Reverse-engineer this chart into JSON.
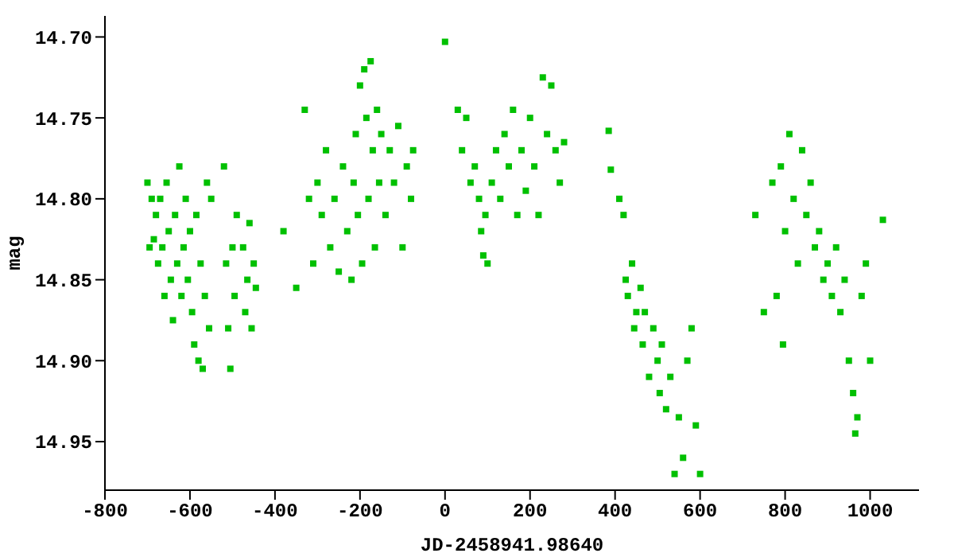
{
  "chart_data": {
    "type": "scatter",
    "xlabel": "JD-2458941.98640",
    "ylabel": "mag",
    "x": [
      -700,
      -695,
      -690,
      -685,
      -680,
      -675,
      -670,
      -665,
      -660,
      -655,
      -650,
      -645,
      -640,
      -635,
      -630,
      -625,
      -620,
      -615,
      -610,
      -605,
      -600,
      -595,
      -590,
      -585,
      -580,
      -575,
      -570,
      -565,
      -560,
      -555,
      -550,
      -520,
      -515,
      -510,
      -505,
      -500,
      -495,
      -490,
      -475,
      -470,
      -465,
      -460,
      -455,
      -450,
      -445,
      -380,
      -350,
      -330,
      -320,
      -310,
      -300,
      -290,
      -280,
      -270,
      -260,
      -250,
      -240,
      -230,
      -220,
      -215,
      -210,
      -205,
      -200,
      -195,
      -190,
      -185,
      -180,
      -175,
      -170,
      -165,
      -160,
      -155,
      -150,
      -140,
      -130,
      -120,
      -110,
      -100,
      -90,
      -80,
      -75,
      0,
      30,
      40,
      50,
      60,
      70,
      80,
      85,
      90,
      95,
      100,
      110,
      120,
      130,
      140,
      150,
      160,
      170,
      180,
      190,
      200,
      210,
      220,
      230,
      240,
      250,
      260,
      270,
      280,
      385,
      390,
      410,
      420,
      425,
      430,
      440,
      445,
      450,
      460,
      465,
      470,
      480,
      490,
      500,
      505,
      510,
      520,
      530,
      540,
      550,
      560,
      570,
      580,
      590,
      600,
      730,
      750,
      770,
      780,
      790,
      795,
      800,
      810,
      820,
      830,
      840,
      850,
      860,
      870,
      880,
      890,
      900,
      910,
      920,
      930,
      940,
      950,
      960,
      965,
      970,
      980,
      990,
      1000,
      1030
    ],
    "values": [
      14.79,
      14.83,
      14.8,
      14.825,
      14.81,
      14.84,
      14.8,
      14.83,
      14.86,
      14.79,
      14.82,
      14.85,
      14.875,
      14.81,
      14.84,
      14.78,
      14.86,
      14.83,
      14.8,
      14.85,
      14.82,
      14.87,
      14.89,
      14.81,
      14.9,
      14.84,
      14.905,
      14.86,
      14.79,
      14.88,
      14.8,
      14.78,
      14.84,
      14.88,
      14.905,
      14.83,
      14.86,
      14.81,
      14.83,
      14.87,
      14.85,
      14.815,
      14.88,
      14.84,
      14.855,
      14.82,
      14.855,
      14.745,
      14.8,
      14.84,
      14.79,
      14.81,
      14.77,
      14.83,
      14.8,
      14.845,
      14.78,
      14.82,
      14.85,
      14.79,
      14.76,
      14.81,
      14.73,
      14.84,
      14.72,
      14.75,
      14.8,
      14.715,
      14.77,
      14.83,
      14.745,
      14.79,
      14.76,
      14.81,
      14.77,
      14.79,
      14.755,
      14.83,
      14.78,
      14.8,
      14.77,
      14.703,
      14.745,
      14.77,
      14.75,
      14.79,
      14.78,
      14.8,
      14.82,
      14.835,
      14.81,
      14.84,
      14.79,
      14.77,
      14.8,
      14.76,
      14.78,
      14.745,
      14.81,
      14.77,
      14.795,
      14.75,
      14.78,
      14.81,
      14.725,
      14.76,
      14.73,
      14.77,
      14.79,
      14.765,
      14.758,
      14.782,
      14.8,
      14.81,
      14.85,
      14.86,
      14.84,
      14.88,
      14.87,
      14.855,
      14.89,
      14.87,
      14.91,
      14.88,
      14.9,
      14.92,
      14.89,
      14.93,
      14.91,
      14.97,
      14.935,
      14.96,
      14.9,
      14.88,
      14.94,
      14.97,
      14.81,
      14.87,
      14.79,
      14.86,
      14.78,
      14.89,
      14.82,
      14.76,
      14.8,
      14.84,
      14.77,
      14.81,
      14.79,
      14.83,
      14.82,
      14.85,
      14.84,
      14.86,
      14.83,
      14.87,
      14.85,
      14.9,
      14.92,
      14.945,
      14.935,
      14.86,
      14.84,
      14.9,
      14.813
    ],
    "color": "#00c000",
    "marker": "square",
    "grid": false,
    "xlim": [
      -800,
      1115
    ],
    "xticks": [
      -800,
      -600,
      -400,
      -200,
      0,
      200,
      400,
      600,
      800,
      1000
    ],
    "ylim": [
      14.98,
      14.687
    ],
    "yticks": [
      {
        "value": 14.7,
        "label": "14.70"
      },
      {
        "value": 14.75,
        "label": "14.75"
      },
      {
        "value": 14.8,
        "label": "14.80"
      },
      {
        "value": 14.85,
        "label": "14.85"
      },
      {
        "value": 14.9,
        "label": "14.90"
      },
      {
        "value": 14.95,
        "label": "14.95"
      }
    ]
  }
}
